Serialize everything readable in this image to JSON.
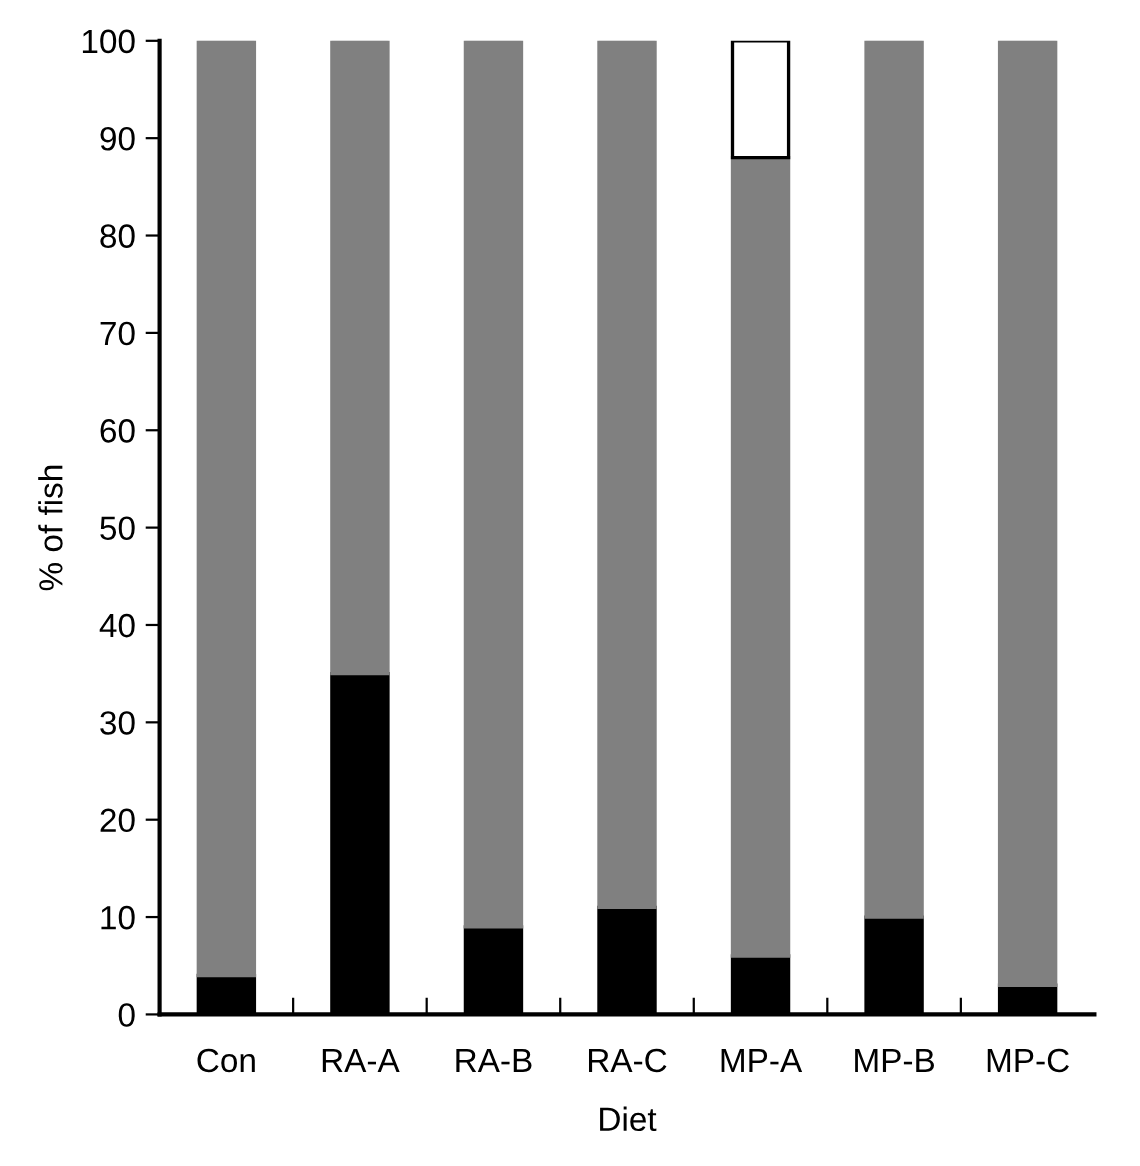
{
  "chart_data": {
    "type": "bar",
    "stacked": true,
    "xlabel": "Diet",
    "ylabel": "% of fish",
    "categories": [
      "Con",
      "RA-A",
      "RA-B",
      "RA-C",
      "MP-A",
      "MP-B",
      "MP-C"
    ],
    "series": [
      {
        "color": "#000000",
        "values": [
          4,
          35,
          9,
          11,
          6,
          10,
          3
        ]
      },
      {
        "color": "#808080",
        "values": [
          96,
          65,
          91,
          89,
          82,
          90,
          97
        ]
      },
      {
        "color": "#ffffff",
        "values": [
          0,
          0,
          0,
          0,
          12,
          0,
          0
        ]
      }
    ],
    "ylim": [
      0,
      100
    ],
    "yticks": [
      0,
      10,
      20,
      30,
      40,
      50,
      60,
      70,
      80,
      90,
      100
    ],
    "grid": false
  }
}
